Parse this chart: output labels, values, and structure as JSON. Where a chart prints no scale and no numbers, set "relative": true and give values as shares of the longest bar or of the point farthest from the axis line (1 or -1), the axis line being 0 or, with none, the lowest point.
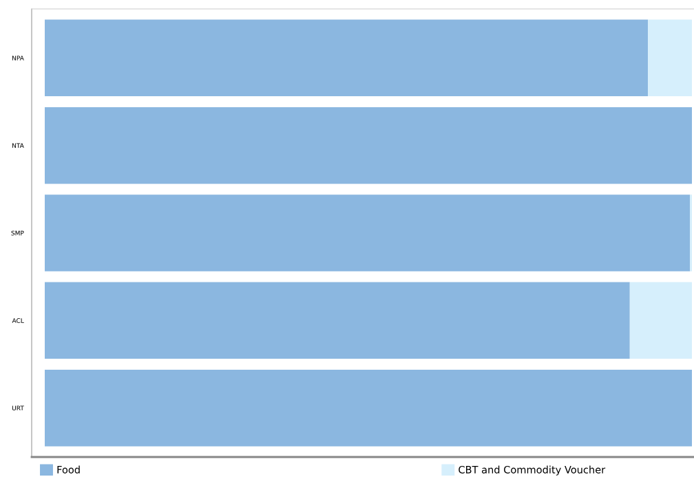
{
  "chart_data": {
    "type": "bar",
    "orientation": "horizontal",
    "stacked": true,
    "relative": true,
    "categories": [
      "NPA",
      "NTA",
      "SMP",
      "ACL",
      "URT"
    ],
    "series": [
      {
        "name": "Food",
        "color": "#8bb7e0",
        "values": [
          0.932,
          1.0,
          0.997,
          0.904,
          1.0
        ]
      },
      {
        "name": "CBT and Commodity Voucher",
        "color": "#d6effc",
        "values": [
          0.068,
          0.0,
          0.003,
          0.096,
          0.0
        ]
      }
    ],
    "legend": "bottom",
    "grid": false
  }
}
